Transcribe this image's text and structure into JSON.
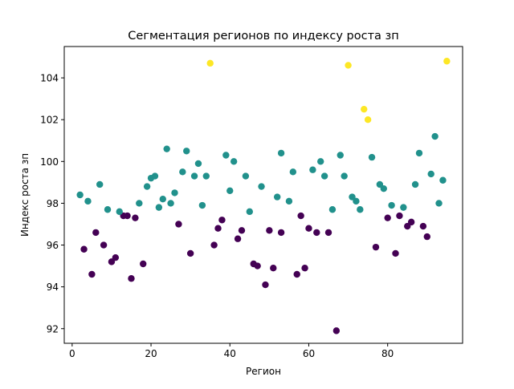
{
  "chart_data": {
    "type": "scatter",
    "title": "Сегментация регионов по индексу роста зп",
    "xlabel": "Регион",
    "ylabel": "Индекс роста зп",
    "xlim": [
      -2,
      99
    ],
    "ylim": [
      91.3,
      105.5
    ],
    "xticks": [
      0,
      20,
      40,
      60,
      80
    ],
    "yticks": [
      92,
      94,
      96,
      98,
      100,
      102,
      104
    ],
    "grid": false,
    "legend": "none",
    "colors": {
      "cluster_0": "#440154",
      "cluster_1": "#21918c",
      "cluster_2": "#fde725"
    },
    "series": [
      {
        "cluster": 0,
        "color": "#440154",
        "x": [
          3,
          5,
          6,
          8,
          10,
          11,
          13,
          14,
          15,
          16,
          18,
          27,
          30,
          36,
          37,
          38,
          42,
          43,
          46,
          47,
          49,
          50,
          51,
          53,
          57,
          58,
          59,
          60,
          62,
          65,
          67,
          77,
          80,
          82,
          83,
          85,
          86,
          89,
          90
        ],
        "y": [
          95.8,
          94.6,
          96.6,
          96.0,
          95.2,
          95.4,
          97.4,
          97.4,
          94.4,
          97.3,
          95.1,
          97.0,
          95.6,
          96.0,
          96.8,
          97.2,
          96.3,
          96.7,
          95.1,
          95.0,
          94.1,
          96.7,
          94.9,
          96.6,
          94.6,
          97.4,
          94.9,
          96.8,
          96.6,
          96.6,
          91.9,
          95.9,
          97.3,
          95.6,
          97.4,
          96.9,
          97.1,
          96.9,
          96.4
        ]
      },
      {
        "cluster": 1,
        "color": "#21918c",
        "x": [
          2,
          4,
          7,
          9,
          12,
          17,
          19,
          20,
          21,
          22,
          23,
          24,
          25,
          26,
          28,
          29,
          31,
          32,
          33,
          34,
          39,
          40,
          41,
          44,
          45,
          48,
          52,
          53,
          55,
          56,
          61,
          63,
          64,
          66,
          68,
          69,
          71,
          72,
          73,
          76,
          78,
          79,
          81,
          84,
          87,
          88,
          91,
          92,
          93,
          94
        ],
        "y": [
          98.4,
          98.1,
          98.9,
          97.7,
          97.6,
          98.0,
          98.8,
          99.2,
          99.3,
          97.8,
          98.2,
          100.6,
          98.0,
          98.5,
          99.5,
          100.5,
          99.3,
          99.9,
          97.9,
          99.3,
          100.3,
          98.6,
          100.0,
          99.3,
          97.6,
          98.8,
          98.3,
          100.4,
          98.1,
          99.5,
          99.6,
          100.0,
          99.3,
          97.7,
          100.3,
          99.3,
          98.3,
          98.1,
          97.7,
          100.2,
          98.9,
          98.7,
          97.9,
          97.8,
          98.9,
          100.4,
          99.4,
          101.2,
          98.0,
          99.1
        ]
      },
      {
        "cluster": 2,
        "color": "#fde725",
        "x": [
          35,
          70,
          74,
          75,
          95
        ],
        "y": [
          104.7,
          104.6,
          102.5,
          102.0,
          104.8
        ]
      }
    ]
  }
}
